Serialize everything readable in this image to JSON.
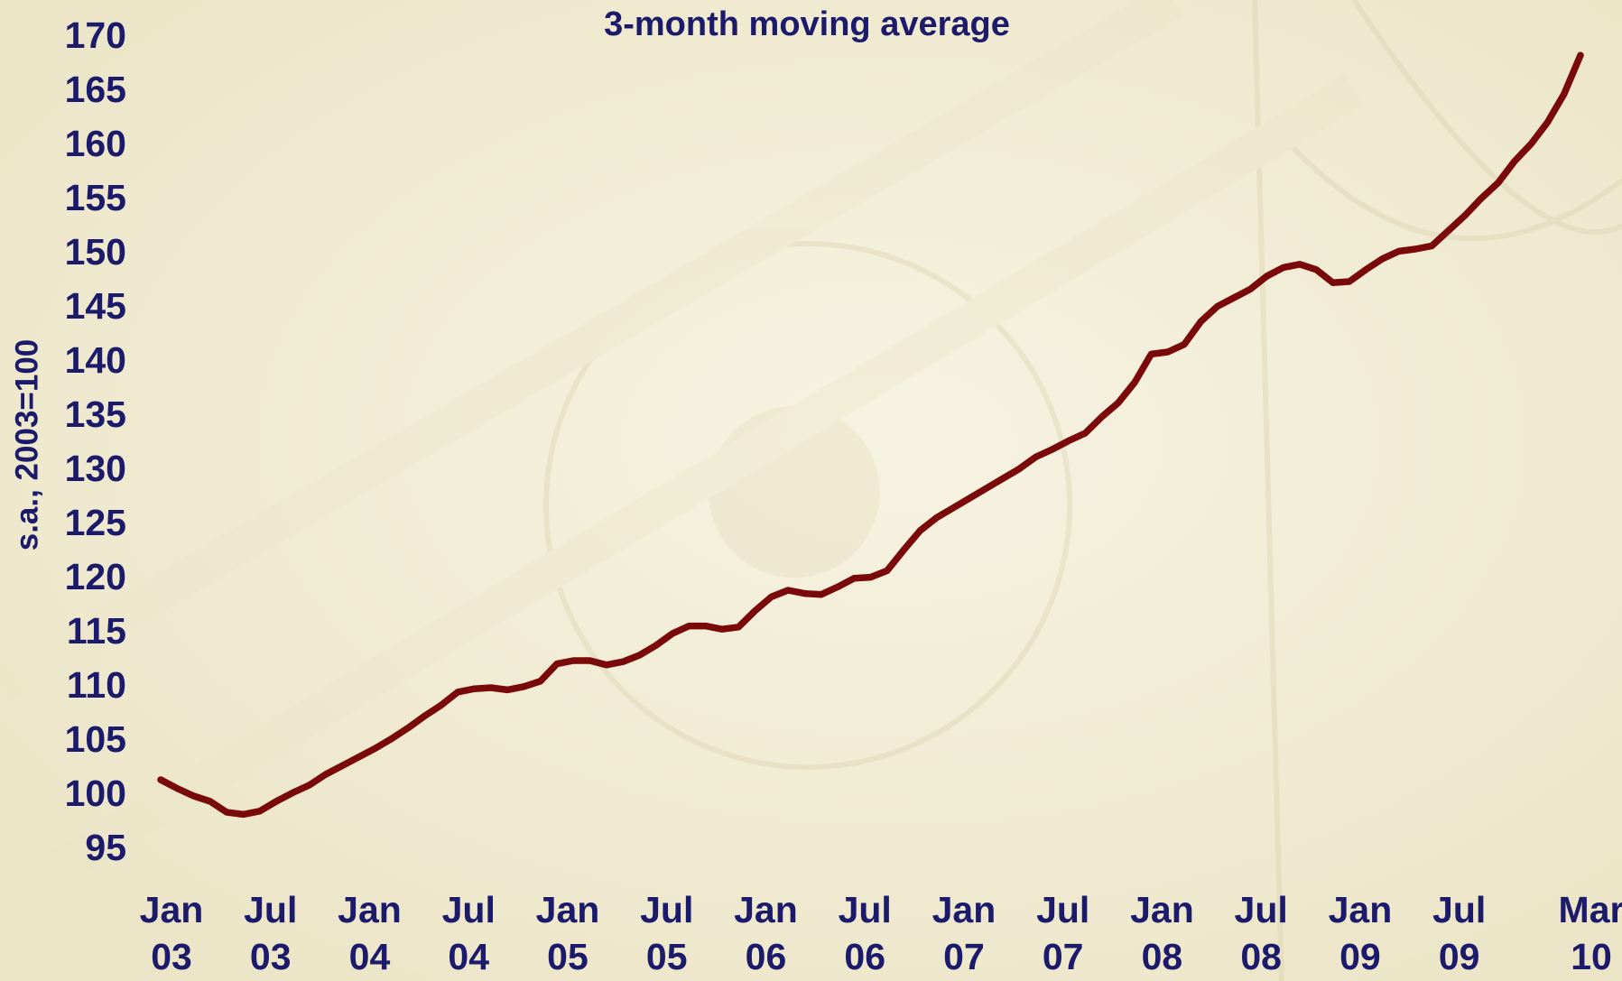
{
  "chart_data": {
    "type": "line",
    "title": "3-month moving average",
    "y_label": "s.a., 2003=100",
    "categories": [
      "Jan 03",
      null,
      null,
      null,
      null,
      null,
      "Jul 03",
      null,
      null,
      null,
      null,
      null,
      "Jan 04",
      null,
      null,
      null,
      null,
      null,
      "Jul 04",
      null,
      null,
      null,
      null,
      null,
      "Jan 05",
      null,
      null,
      null,
      null,
      null,
      "Jul 05",
      null,
      null,
      null,
      null,
      null,
      "Jan 06",
      null,
      null,
      null,
      null,
      null,
      "Jul 06",
      null,
      null,
      null,
      null,
      null,
      "Jan 07",
      null,
      null,
      null,
      null,
      null,
      "Jul 07",
      null,
      null,
      null,
      null,
      null,
      "Jan 08",
      null,
      null,
      null,
      null,
      null,
      "Jul 08",
      null,
      null,
      null,
      null,
      null,
      "Jan 09",
      null,
      null,
      null,
      null,
      null,
      "Jul 09",
      null,
      null,
      null,
      null,
      null,
      null,
      null,
      "Mar 10"
    ],
    "series": [
      {
        "color": "#7a0a0a",
        "values": [
          101.5,
          100.7,
          100.0,
          99.5,
          98.5,
          98.3,
          98.6,
          99.5,
          100.3,
          101.0,
          102.0,
          102.8,
          103.6,
          104.4,
          105.3,
          106.3,
          107.4,
          108.4,
          109.6,
          109.9,
          110.0,
          109.8,
          110.1,
          110.6,
          112.2,
          112.5,
          112.5,
          112.1,
          112.4,
          113.0,
          113.9,
          115.0,
          115.7,
          115.7,
          115.4,
          115.6,
          117.1,
          118.4,
          119.0,
          118.7,
          118.6,
          119.3,
          120.1,
          120.2,
          120.8,
          122.7,
          124.5,
          125.7,
          126.6,
          127.5,
          128.4,
          129.3,
          130.2,
          131.3,
          132.0,
          132.8,
          133.5,
          135.0,
          136.3,
          138.2,
          140.8,
          141.0,
          141.7,
          143.8,
          145.2,
          146.0,
          146.8,
          148.0,
          148.8,
          149.1,
          148.6,
          147.4,
          147.5,
          148.6,
          149.6,
          150.3,
          150.5,
          150.8,
          152.2,
          153.6,
          155.2,
          156.6,
          158.6,
          160.2,
          162.2,
          164.8,
          168.4
        ]
      }
    ],
    "ylim": [
      95,
      170
    ],
    "yticks": [
      95,
      100,
      105,
      110,
      115,
      120,
      125,
      130,
      135,
      140,
      145,
      150,
      155,
      160,
      165,
      170
    ],
    "grid": false
  }
}
